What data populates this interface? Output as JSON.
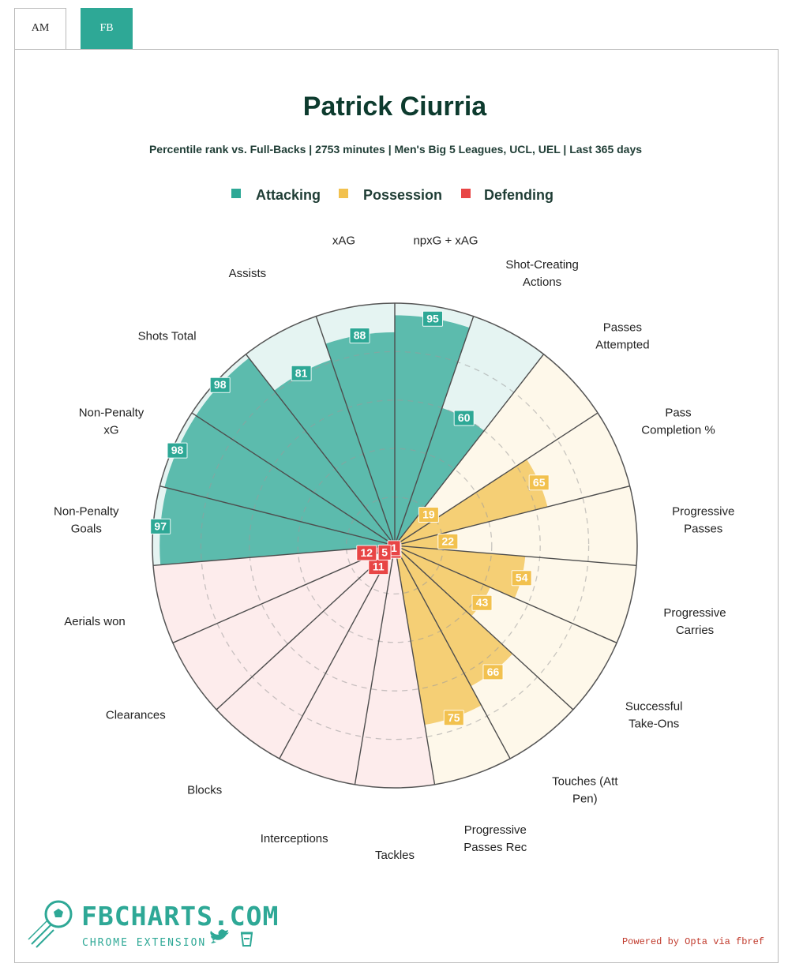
{
  "tabs": [
    {
      "label": "AM",
      "active": false
    },
    {
      "label": "FB",
      "active": true
    }
  ],
  "colors": {
    "tab_active": "#2ea896",
    "attacking": "#2ea896",
    "attacking_light": "#e5f4f2",
    "possession": "#f2c14e",
    "possession_light": "#fef8ea",
    "defending": "#e84545",
    "defending_light": "#fdecec"
  },
  "chart_data": {
    "type": "polar-bar",
    "title": "Patrick Ciurria",
    "subtitle": "Percentile rank vs. Full-Backs | 2753 minutes | Men's Big 5 Leagues, UCL, UEL | Last 365 days",
    "rlim": [
      0,
      100
    ],
    "legend": {
      "placement": "top",
      "entries": [
        {
          "name": "Attacking",
          "color": "#2ea896"
        },
        {
          "name": "Possession",
          "color": "#f2c14e"
        },
        {
          "name": "Defending",
          "color": "#e84545"
        }
      ]
    },
    "categories": [
      {
        "label": [
          "npxG + xAG"
        ],
        "value": 95,
        "group": "Attacking"
      },
      {
        "label": [
          "Shot-Creating",
          "Actions"
        ],
        "value": 60,
        "group": "Attacking"
      },
      {
        "label": [
          "Passes",
          "Attempted"
        ],
        "value": 19,
        "group": "Possession"
      },
      {
        "label": [
          "Pass",
          "Completion %"
        ],
        "value": 65,
        "group": "Possession"
      },
      {
        "label": [
          "Progressive",
          "Passes"
        ],
        "value": 22,
        "group": "Possession"
      },
      {
        "label": [
          "Progressive",
          "Carries"
        ],
        "value": 54,
        "group": "Possession"
      },
      {
        "label": [
          "Successful",
          "Take-Ons"
        ],
        "value": 43,
        "group": "Possession"
      },
      {
        "label": [
          "Touches (Att",
          "Pen)"
        ],
        "value": 66,
        "group": "Possession"
      },
      {
        "label": [
          "Progressive",
          "Passes Rec"
        ],
        "value": 75,
        "group": "Possession"
      },
      {
        "label": [
          "Tackles"
        ],
        "value": 2,
        "group": "Defending"
      },
      {
        "label": [
          "Interceptions"
        ],
        "value": 1,
        "group": "Defending"
      },
      {
        "label": [
          "Blocks"
        ],
        "value": 11,
        "group": "Defending"
      },
      {
        "label": [
          "Clearances"
        ],
        "value": 5,
        "group": "Defending"
      },
      {
        "label": [
          "Aerials won"
        ],
        "value": 12,
        "group": "Defending"
      },
      {
        "label": [
          "Non-Penalty",
          "Goals"
        ],
        "value": 97,
        "group": "Attacking"
      },
      {
        "label": [
          "Non-Penalty",
          "xG"
        ],
        "value": 98,
        "group": "Attacking"
      },
      {
        "label": [
          "Shots Total"
        ],
        "value": 98,
        "group": "Attacking"
      },
      {
        "label": [
          "Assists"
        ],
        "value": 81,
        "group": "Attacking"
      },
      {
        "label": [
          "xAG"
        ],
        "value": 88,
        "group": "Attacking"
      }
    ]
  },
  "branding": {
    "name": "FBCHARTS.COM",
    "sub": "CHROME EXTENSION",
    "credit": "Powered by Opta via fbref"
  }
}
